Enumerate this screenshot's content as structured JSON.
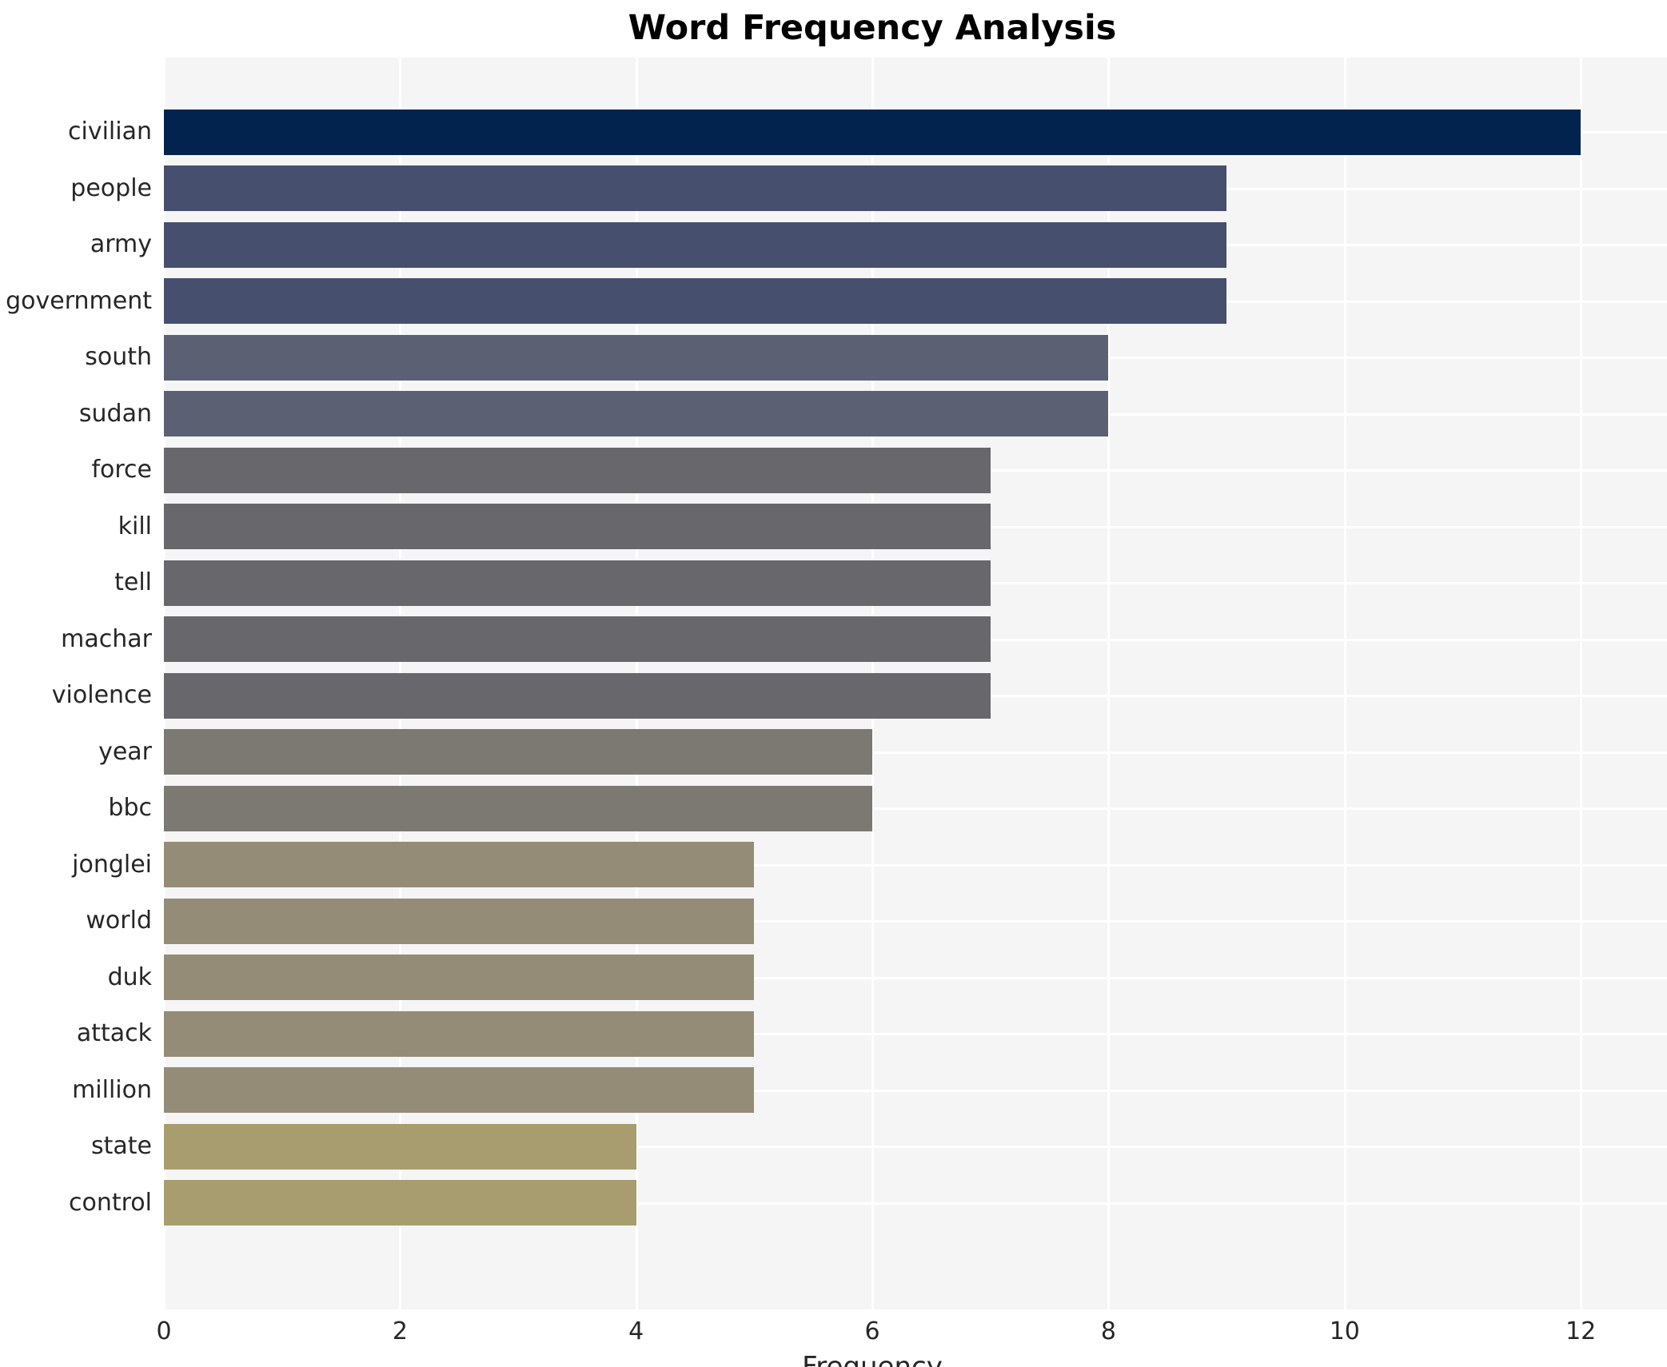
{
  "chart_data": {
    "type": "bar",
    "orientation": "horizontal",
    "title": "Word Frequency Analysis",
    "xlabel": "Frequency",
    "ylabel": "",
    "categories": [
      "civilian",
      "people",
      "army",
      "government",
      "south",
      "sudan",
      "force",
      "kill",
      "tell",
      "machar",
      "violence",
      "year",
      "bbc",
      "jonglei",
      "world",
      "duk",
      "attack",
      "million",
      "state",
      "control"
    ],
    "values": [
      12,
      9,
      9,
      9,
      8,
      8,
      7,
      7,
      7,
      7,
      7,
      6,
      6,
      5,
      5,
      5,
      5,
      5,
      4,
      4
    ],
    "bar_colors": [
      "#02234d",
      "#464f6d",
      "#464f6d",
      "#464f6d",
      "#5b6173",
      "#5b6173",
      "#67676c",
      "#67676c",
      "#67676c",
      "#67676c",
      "#67676c",
      "#7b7971",
      "#7b7971",
      "#948c77",
      "#948c77",
      "#948c77",
      "#948c77",
      "#948c77",
      "#a89d6e",
      "#a89d6e"
    ],
    "xticks": [
      0,
      2,
      4,
      6,
      8,
      10,
      12
    ],
    "xlim": [
      0,
      12.73
    ],
    "legend": "none",
    "grid": "on",
    "colors": {
      "plot_background": "#f5f5f6",
      "gridline": "#ffffff",
      "title_text": "#000000",
      "axis_text": "#262626",
      "figure_background": "#ffffff"
    }
  }
}
